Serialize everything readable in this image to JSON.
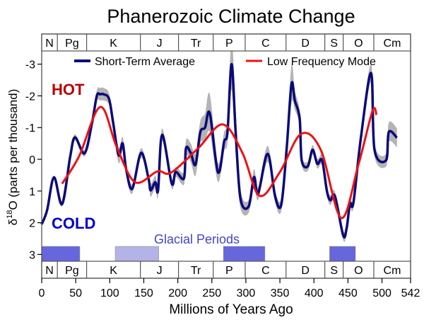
{
  "chart_data": {
    "type": "line",
    "title": "Phanerozoic Climate Change",
    "xlabel": "Millions of Years Ago",
    "ylabel": {
      "prefix": "δ",
      "sup": "18",
      "rest": "O (parts per thousand)"
    },
    "xlim": [
      0,
      542
    ],
    "ylim": [
      -3.4,
      3.3
    ],
    "y_inverted": true,
    "xticks": [
      0,
      50,
      100,
      150,
      200,
      250,
      300,
      350,
      400,
      450,
      500,
      542
    ],
    "yticks": [
      -3,
      -2,
      -1,
      0,
      1,
      2,
      3
    ],
    "legend_position": "top",
    "annotations": {
      "hot": "HOT",
      "cold": "COLD",
      "glacial": "Glacial Periods"
    },
    "colors": {
      "short": "#0a0a7a",
      "low": "#ee1111",
      "band": "#b4b4b4",
      "hot": "#bb0000",
      "cold": "#0000cc",
      "glacial_dark": "#6666dd",
      "glacial_light": "#b3b3e8",
      "glacial_text": "#4444cc"
    },
    "periods": [
      {
        "label": "N",
        "start": 0,
        "end": 23
      },
      {
        "label": "Pg",
        "start": 23,
        "end": 66
      },
      {
        "label": "K",
        "start": 66,
        "end": 145
      },
      {
        "label": "J",
        "start": 145,
        "end": 201
      },
      {
        "label": "Tr",
        "start": 201,
        "end": 252
      },
      {
        "label": "P",
        "start": 252,
        "end": 299
      },
      {
        "label": "C",
        "start": 299,
        "end": 359
      },
      {
        "label": "D",
        "start": 359,
        "end": 416
      },
      {
        "label": "S",
        "start": 416,
        "end": 443
      },
      {
        "label": "O",
        "start": 443,
        "end": 488
      },
      {
        "label": "Cm",
        "start": 488,
        "end": 542
      }
    ],
    "glacial_periods": [
      {
        "start": 0,
        "end": 56,
        "shade": "dark"
      },
      {
        "start": 108,
        "end": 172,
        "shade": "light"
      },
      {
        "start": 267,
        "end": 328,
        "shade": "dark"
      },
      {
        "start": 423,
        "end": 461,
        "shade": "dark"
      }
    ],
    "series": [
      {
        "name": "Short-Term Average",
        "x": [
          0,
          8,
          18,
          30,
          42,
          49,
          63,
          74,
          81,
          86,
          91,
          99,
          105,
          113,
          119,
          124,
          133,
          146,
          157,
          160,
          167,
          171,
          177,
          191,
          197,
          209,
          212,
          219,
          226,
          233,
          240,
          247,
          259,
          268,
          273,
          279,
          285,
          292,
          304,
          312,
          318,
          332,
          343,
          352,
          360,
          367,
          372,
          379,
          382,
          391,
          398,
          405,
          412,
          419,
          424,
          431,
          443,
          448,
          453,
          458,
          469,
          484,
          489,
          506,
          510,
          522
        ],
        "y": [
          2.05,
          1.6,
          0.57,
          1.41,
          -0.1,
          -0.69,
          -0.19,
          -1.15,
          -2.0,
          -2.05,
          -2.05,
          -1.9,
          -1.15,
          -0.13,
          -0.5,
          0.3,
          0.93,
          -0.2,
          0.61,
          0.98,
          0.72,
          0.98,
          -0.77,
          0.76,
          0.4,
          0.6,
          -0.35,
          -0.2,
          0.17,
          -0.85,
          -1.0,
          -1.45,
          0.41,
          -0.55,
          -0.86,
          -3.0,
          -0.86,
          1.23,
          1.49,
          0.56,
          1.08,
          -0.17,
          1.17,
          1.43,
          -0.35,
          -2.37,
          -1.85,
          -1.3,
          0.03,
          0.22,
          -0.3,
          0.14,
          0.03,
          0.99,
          1.29,
          1.17,
          2.4,
          2.18,
          1.4,
          1.37,
          -0.68,
          -2.72,
          -0.3,
          0.03,
          -0.86,
          -0.68
        ],
        "uncertainty": [
          0.05,
          0.05,
          0.05,
          0.08,
          0.1,
          0.1,
          0.1,
          0.12,
          0.18,
          0.2,
          0.2,
          0.18,
          0.15,
          0.25,
          0.2,
          0.2,
          0.15,
          0.15,
          0.15,
          0.2,
          0.2,
          0.2,
          0.2,
          0.15,
          0.15,
          0.2,
          0.25,
          0.3,
          0.35,
          0.35,
          0.45,
          0.6,
          0.3,
          0.3,
          0.35,
          0.8,
          0.7,
          0.3,
          0.2,
          0.25,
          0.2,
          0.25,
          0.2,
          0.2,
          0.3,
          0.6,
          0.3,
          0.25,
          0.15,
          0.15,
          0.15,
          0.15,
          0.15,
          0.15,
          0.15,
          0.15,
          0.15,
          0.15,
          0.15,
          0.15,
          0.2,
          0.3,
          0.2,
          0.2,
          0.3,
          0.3
        ]
      },
      {
        "name": "Low Frequency Mode",
        "x": [
          30,
          55,
          86,
          110,
          137,
          170,
          190,
          230,
          266,
          295,
          320,
          350,
          381,
          410,
          440,
          465,
          486,
          492
        ],
        "y": [
          0.77,
          -0.1,
          -1.65,
          -0.4,
          0.72,
          0.38,
          0.42,
          -0.35,
          -1.1,
          -0.2,
          1.15,
          0.4,
          -0.8,
          -0.3,
          1.85,
          0.2,
          -1.52,
          -1.4
        ]
      }
    ]
  }
}
